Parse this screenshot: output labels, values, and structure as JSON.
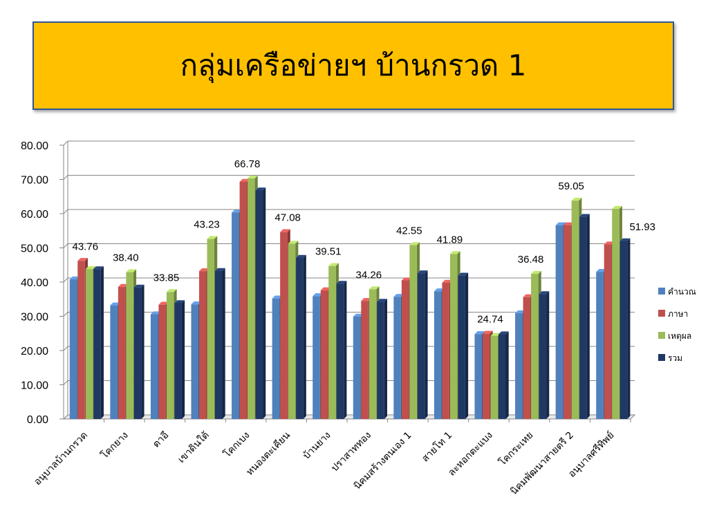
{
  "title": "กลุ่มเครือข่ายฯ บ้านกรวด 1",
  "colors": {
    "title_bg": "#FFC000",
    "title_border": "#2F5597",
    "series": [
      "#4F81BD",
      "#C0504D",
      "#9BBB59",
      "#1F3864"
    ]
  },
  "chart_data": {
    "type": "bar",
    "categories": [
      "อนุบาลบ้านกรวด",
      "โคกยาง",
      "ตาอี",
      "เขาดินใต้",
      "โคกเบง",
      "หนองตะเคียน",
      "บ้านยาง",
      "ปราสาททอง",
      "นิคมสร้างตนเอง 1",
      "สายโท 1",
      "ละหอกตะแบง",
      "โคกระเหย",
      "นิคมพัฒนาสายตรี 2",
      "อนุบาลศรีทิพย์"
    ],
    "series": [
      {
        "name": "คำนวณ",
        "values": [
          40.8,
          33.2,
          30.6,
          33.5,
          60.3,
          35.2,
          35.9,
          29.9,
          35.7,
          37.3,
          24.8,
          30.9,
          56.6,
          43.0
        ]
      },
      {
        "name": "ภาษา",
        "values": [
          46.2,
          38.6,
          33.4,
          43.2,
          69.3,
          54.6,
          37.6,
          34.5,
          40.5,
          39.8,
          24.9,
          35.6,
          56.6,
          51.0
        ]
      },
      {
        "name": "เหตุผล",
        "values": [
          43.8,
          42.9,
          37.1,
          52.6,
          70.3,
          51.2,
          44.7,
          37.9,
          50.8,
          48.2,
          24.3,
          42.4,
          63.8,
          61.4
        ]
      },
      {
        "name": "รวม",
        "values": [
          43.76,
          38.4,
          33.85,
          43.23,
          66.78,
          47.08,
          39.51,
          34.26,
          42.55,
          41.89,
          24.74,
          36.48,
          59.05,
          51.93
        ]
      }
    ],
    "data_labels": [
      "43.76",
      "38.40",
      "33.85",
      "43.23",
      "66.78",
      "47.08",
      "39.51",
      "34.26",
      "42.55",
      "41.89",
      "24.74",
      "36.48",
      "59.05",
      "51.93"
    ],
    "y_ticks": [
      "0.00",
      "10.00",
      "20.00",
      "30.00",
      "40.00",
      "50.00",
      "60.00",
      "70.00",
      "80.00"
    ],
    "ylim": [
      0,
      80
    ],
    "grid": true,
    "legend_position": "right"
  }
}
